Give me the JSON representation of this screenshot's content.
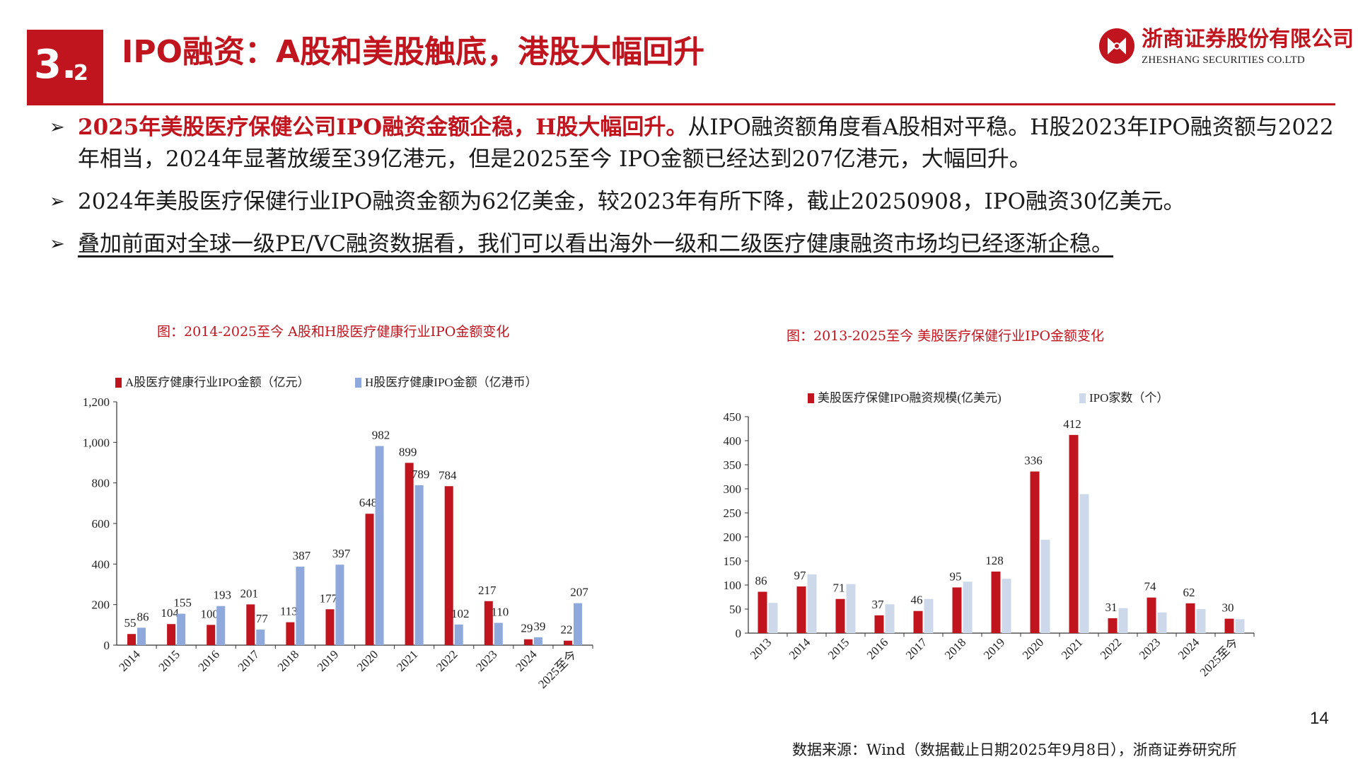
{
  "header": {
    "section_major": "3.",
    "section_minor": "2",
    "title": "IPO融资：A股和美股触底，港股大幅回升",
    "logo_cn": "浙商证券股份有限公司",
    "logo_en": "ZHESHANG SECURITIES CO.LTD",
    "logo_icon": "zheshang-logo-icon",
    "accent": "#c0141e"
  },
  "bullets": [
    {
      "emphasis": "2025年美股医疗保健公司IPO融资金额企稳，H股大幅回升。",
      "text": "从IPO融资额角度看A股相对平稳。H股2023年IPO融资额与2022年相当，2024年显著放缓至39亿港元，但是2025至今 IPO金额已经达到207亿港元，大幅回升。"
    },
    {
      "emphasis": "",
      "text": "2024年美股医疗保健行业IPO融资金额为62亿美金，较2023年有所下降，截止20250908，IPO融资30亿美元。"
    },
    {
      "emphasis": "",
      "text": "叠加前面对全球一级PE/VC融资数据看，我们可以看出海外一级和二级医疗健康融资市场均已经逐渐企稳。"
    }
  ],
  "chart_data": [
    {
      "type": "bar",
      "title": "图：2014-2025至今 A股和H股医疗健康行业IPO金额变化",
      "categories": [
        "2014",
        "2015",
        "2016",
        "2017",
        "2018",
        "2019",
        "2020",
        "2021",
        "2022",
        "2023",
        "2024",
        "2025至今"
      ],
      "series": [
        {
          "name": "A股医疗健康行业IPO金额（亿元）",
          "values": [
            55,
            104,
            100,
            201,
            113,
            177,
            648,
            899,
            784,
            217,
            29,
            22
          ],
          "color": "#c0141e"
        },
        {
          "name": "H股医疗健康IPO金额（亿港币）",
          "values": [
            86,
            155,
            193,
            77,
            387,
            397,
            982,
            789,
            102,
            110,
            39,
            207
          ],
          "color": "#8fa9dc"
        }
      ],
      "ylim": [
        0,
        1200
      ],
      "yticks": [
        0,
        200,
        400,
        600,
        800,
        1000,
        1200
      ],
      "ytick_labels": [
        "0",
        "200",
        "400",
        "600",
        "800",
        "1,000",
        "1,200"
      ],
      "legend_position": "top",
      "grid": false,
      "data_labels": true
    },
    {
      "type": "bar",
      "title": "图：2013-2025至今 美股医疗保健行业IPO金额变化",
      "categories": [
        "2013",
        "2014",
        "2015",
        "2016",
        "2017",
        "2018",
        "2019",
        "2020",
        "2021",
        "2022",
        "2023",
        "2024",
        "2025至今"
      ],
      "series": [
        {
          "name": "美股医疗保健IPO融资规模(亿美元)",
          "values": [
            86,
            97,
            71,
            37,
            46,
            95,
            128,
            336,
            412,
            31,
            74,
            62,
            30
          ],
          "color": "#c0141e",
          "labeled": true
        },
        {
          "name": "IPO家数（个）",
          "values": [
            63,
            122,
            102,
            60,
            71,
            107,
            113,
            194,
            289,
            52,
            43,
            50,
            29
          ],
          "color": "#cdd9ea",
          "labeled": false
        }
      ],
      "ylim": [
        0,
        450
      ],
      "yticks": [
        0,
        50,
        100,
        150,
        200,
        250,
        300,
        350,
        400,
        450
      ],
      "ytick_labels": [
        "0",
        "50",
        "100",
        "150",
        "200",
        "250",
        "300",
        "350",
        "400",
        "450"
      ],
      "legend_position": "top",
      "grid": false,
      "data_labels": true
    }
  ],
  "footer": {
    "page_number": "14",
    "source": "数据来源：Wind（数据截止日期2025年9月8日），浙商证券研究所"
  }
}
